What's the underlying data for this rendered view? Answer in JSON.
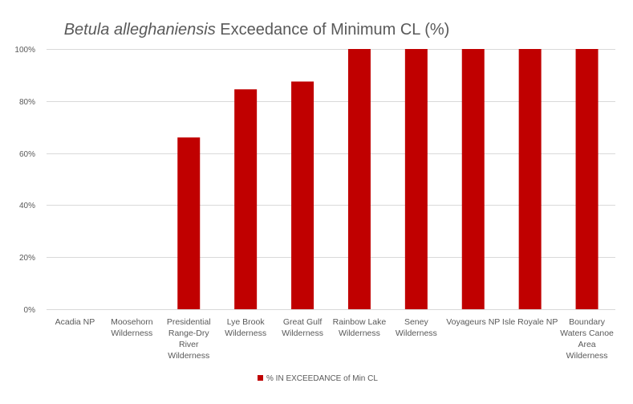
{
  "chart_data": {
    "type": "bar",
    "title_species": "Betula alleghaniensis",
    "title_rest": " Exceedance of Minimum CL (%)",
    "categories": [
      [
        "Acadia NP"
      ],
      [
        "Moosehorn",
        "Wilderness"
      ],
      [
        "Presidential",
        "Range-Dry",
        "River",
        "Wilderness"
      ],
      [
        "Lye Brook",
        "Wilderness"
      ],
      [
        "Great Gulf",
        "Wilderness"
      ],
      [
        "Rainbow Lake",
        "Wilderness"
      ],
      [
        "Seney",
        "Wilderness"
      ],
      [
        "Voyageurs NP"
      ],
      [
        "Isle Royale NP"
      ],
      [
        "Boundary",
        "Waters Canoe",
        "Area",
        "Wilderness"
      ]
    ],
    "series": [
      {
        "name": "% IN EXCEEDANCE of Min CL",
        "color": "#c00000",
        "values": [
          0,
          0,
          66,
          84.5,
          87.5,
          100,
          100,
          100,
          100,
          100
        ]
      }
    ],
    "ylim": [
      0,
      100
    ],
    "yticks": [
      0,
      20,
      40,
      60,
      80,
      100
    ],
    "ytick_labels": [
      "0%",
      "20%",
      "40%",
      "60%",
      "80%",
      "100%"
    ],
    "xlabel": "",
    "ylabel": "",
    "grid": true,
    "legend_position": "bottom"
  }
}
